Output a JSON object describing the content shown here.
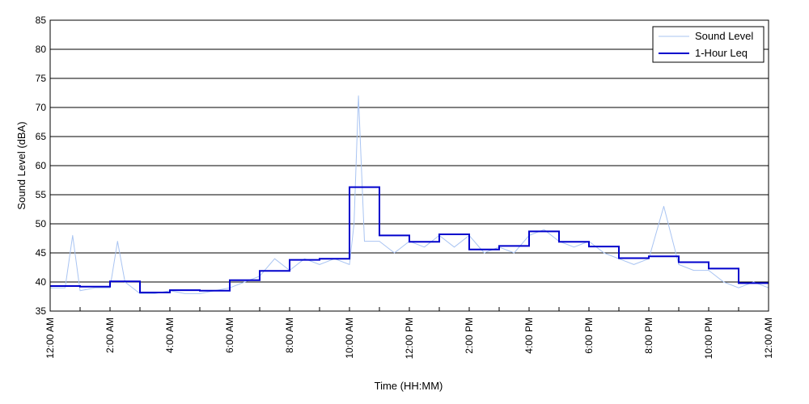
{
  "chart_data": {
    "type": "line",
    "xlabel": "Time (HH:MM)",
    "ylabel": "Sound Level (dBA)",
    "ylim": [
      35,
      85
    ],
    "xlim": [
      0,
      24
    ],
    "y_ticks": [
      "35",
      "40",
      "45",
      "50",
      "55",
      "60",
      "65",
      "70",
      "75",
      "80",
      "85"
    ],
    "x_tick_hours": [
      0,
      2,
      4,
      6,
      8,
      10,
      12,
      14,
      16,
      18,
      20,
      22,
      24
    ],
    "x_tick_labels": [
      "12:00 AM",
      "2:00 AM",
      "4:00 AM",
      "6:00 AM",
      "8:00 AM",
      "10:00 AM",
      "12:00 PM",
      "2:00 PM",
      "4:00 PM",
      "6:00 PM",
      "8:00 PM",
      "10:00 PM",
      "12:00 AM"
    ],
    "grid": "horizontal",
    "legend_position": "top-right",
    "series": [
      {
        "name": "Sound Level",
        "color": "#a9c4f2",
        "x": [
          0,
          0.5,
          0.75,
          1,
          1.5,
          2,
          2.25,
          2.5,
          3,
          3.5,
          4,
          4.5,
          5,
          5.5,
          6,
          6.5,
          7,
          7.5,
          8,
          8.5,
          9,
          9.5,
          10,
          10.15,
          10.3,
          10.5,
          11,
          11.5,
          12,
          12.5,
          13,
          13.5,
          14,
          14.5,
          15,
          15.5,
          16,
          16.5,
          17,
          17.5,
          18,
          18.5,
          19,
          19.5,
          20,
          20.5,
          21,
          21.5,
          22,
          22.5,
          23,
          23.5,
          24
        ],
        "y": [
          39,
          39,
          48,
          38.5,
          39,
          39,
          47,
          40,
          38,
          38,
          38.5,
          38,
          38,
          38.5,
          39,
          40,
          41,
          44,
          42,
          44,
          43,
          44,
          43,
          50,
          72,
          47,
          47,
          45,
          47,
          46,
          48,
          46,
          48,
          45,
          46,
          45,
          48,
          49,
          47,
          46,
          47,
          45,
          44,
          43,
          44,
          53,
          43,
          42,
          42,
          40,
          39,
          40,
          39
        ]
      },
      {
        "name": "1-Hour Leq",
        "color": "#0000cc",
        "x": [
          0,
          1,
          2,
          3,
          4,
          5,
          6,
          7,
          8,
          9,
          10,
          11,
          12,
          13,
          14,
          15,
          16,
          17,
          18,
          19,
          20,
          21,
          22,
          23,
          24
        ],
        "y": [
          39.3,
          39.2,
          40.1,
          38.2,
          38.6,
          38.5,
          40.3,
          41.9,
          43.8,
          44.0,
          56.3,
          48.0,
          46.9,
          48.2,
          45.6,
          46.2,
          48.7,
          46.9,
          46.1,
          44.1,
          44.4,
          43.4,
          42.3,
          39.8,
          39.8
        ]
      }
    ]
  }
}
